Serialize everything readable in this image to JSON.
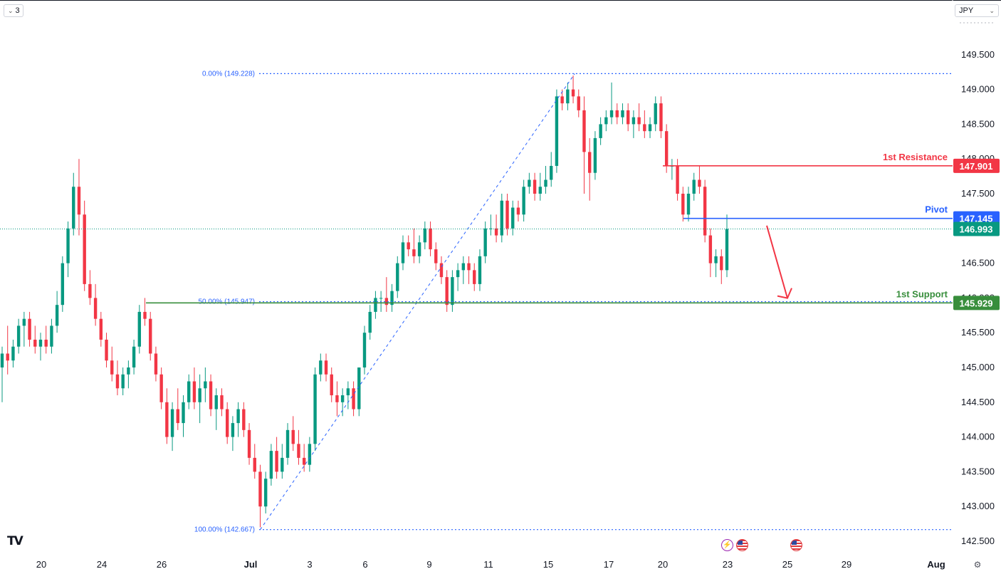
{
  "toolbar": {
    "interval_label": "3",
    "currency_label": "JPY"
  },
  "colors": {
    "up": "#089981",
    "down": "#f23645",
    "fib": "#2962ff",
    "resistance": "#f23645",
    "pivot": "#2962ff",
    "support": "#388e3c",
    "last_price": "#089981",
    "arrow": "#f23645"
  },
  "chart_data": {
    "type": "candlestick",
    "y_axis": {
      "range": [
        142.5,
        149.75
      ],
      "ticks": [
        "149.500",
        "149.000",
        "148.500",
        "148.000",
        "147.500",
        "147.000",
        "146.500",
        "146.000",
        "145.500",
        "145.000",
        "144.500",
        "144.000",
        "143.500",
        "143.000",
        "142.500"
      ],
      "position": "right"
    },
    "x_axis": {
      "tick_labels": [
        "20",
        "24",
        "26",
        "Jul",
        "3",
        "6",
        "9",
        "11",
        "15",
        "17",
        "20",
        "23",
        "25",
        "29",
        "Aug"
      ]
    },
    "candles": [
      [
        145.0,
        145.3,
        144.5,
        145.2
      ],
      [
        145.2,
        145.6,
        144.9,
        145.1
      ],
      [
        145.1,
        145.4,
        145.0,
        145.3
      ],
      [
        145.3,
        145.7,
        145.2,
        145.6
      ],
      [
        145.6,
        145.8,
        145.3,
        145.7
      ],
      [
        145.7,
        145.8,
        145.3,
        145.4
      ],
      [
        145.4,
        145.6,
        145.2,
        145.3
      ],
      [
        145.3,
        145.5,
        145.1,
        145.4
      ],
      [
        145.4,
        145.6,
        145.2,
        145.3
      ],
      [
        145.3,
        145.7,
        145.2,
        145.6
      ],
      [
        145.6,
        146.1,
        145.5,
        145.9
      ],
      [
        145.9,
        146.6,
        145.8,
        146.5
      ],
      [
        146.5,
        147.1,
        146.3,
        147.0
      ],
      [
        147.0,
        147.8,
        146.9,
        147.6
      ],
      [
        147.6,
        148.0,
        146.9,
        147.2
      ],
      [
        147.2,
        147.4,
        146.1,
        146.2
      ],
      [
        146.2,
        146.4,
        145.9,
        146.0
      ],
      [
        146.0,
        146.2,
        145.6,
        145.7
      ],
      [
        145.7,
        145.8,
        145.3,
        145.4
      ],
      [
        145.4,
        145.5,
        145.0,
        145.1
      ],
      [
        145.1,
        145.3,
        144.8,
        144.9
      ],
      [
        144.9,
        145.1,
        144.6,
        144.7
      ],
      [
        144.7,
        145.0,
        144.6,
        144.9
      ],
      [
        144.9,
        145.1,
        144.7,
        145.0
      ],
      [
        145.0,
        145.4,
        144.9,
        145.3
      ],
      [
        145.3,
        145.9,
        145.2,
        145.8
      ],
      [
        145.8,
        146.0,
        145.6,
        145.7
      ],
      [
        145.7,
        145.8,
        145.1,
        145.2
      ],
      [
        145.2,
        145.3,
        144.8,
        144.9
      ],
      [
        144.9,
        145.0,
        144.4,
        144.5
      ],
      [
        144.5,
        144.7,
        143.9,
        144.0
      ],
      [
        144.0,
        144.5,
        143.8,
        144.4
      ],
      [
        144.4,
        144.7,
        144.1,
        144.2
      ],
      [
        144.2,
        144.6,
        144.0,
        144.5
      ],
      [
        144.5,
        144.9,
        144.4,
        144.8
      ],
      [
        144.8,
        145.0,
        144.4,
        144.5
      ],
      [
        144.5,
        144.9,
        144.2,
        144.7
      ],
      [
        144.7,
        145.0,
        144.5,
        144.8
      ],
      [
        144.8,
        144.9,
        144.3,
        144.4
      ],
      [
        144.4,
        144.7,
        144.1,
        144.6
      ],
      [
        144.6,
        144.7,
        144.3,
        144.4
      ],
      [
        144.4,
        144.5,
        143.9,
        144.0
      ],
      [
        144.0,
        144.3,
        143.8,
        144.2
      ],
      [
        144.2,
        144.5,
        144.0,
        144.4
      ],
      [
        144.4,
        144.5,
        144.0,
        144.1
      ],
      [
        144.1,
        144.2,
        143.6,
        143.7
      ],
      [
        143.7,
        143.9,
        143.4,
        143.5
      ],
      [
        143.5,
        143.6,
        142.7,
        143.0
      ],
      [
        143.0,
        143.5,
        142.9,
        143.4
      ],
      [
        143.4,
        143.9,
        143.3,
        143.8
      ],
      [
        143.8,
        144.0,
        143.4,
        143.5
      ],
      [
        143.5,
        143.9,
        143.4,
        143.7
      ],
      [
        143.7,
        144.2,
        143.6,
        144.1
      ],
      [
        144.1,
        144.3,
        143.8,
        143.9
      ],
      [
        143.9,
        144.1,
        143.6,
        143.7
      ],
      [
        143.7,
        143.9,
        143.5,
        143.6
      ],
      [
        143.6,
        144.0,
        143.5,
        143.9
      ],
      [
        143.9,
        145.0,
        143.8,
        144.9
      ],
      [
        144.9,
        145.2,
        144.8,
        145.1
      ],
      [
        145.1,
        145.2,
        144.8,
        144.9
      ],
      [
        144.9,
        145.0,
        144.5,
        144.6
      ],
      [
        144.6,
        144.8,
        144.3,
        144.5
      ],
      [
        144.5,
        144.7,
        144.3,
        144.6
      ],
      [
        144.6,
        144.8,
        144.4,
        144.7
      ],
      [
        144.7,
        144.8,
        144.3,
        144.4
      ],
      [
        144.4,
        145.0,
        144.3,
        145.0
      ],
      [
        145.0,
        145.6,
        144.9,
        145.5
      ],
      [
        145.5,
        145.9,
        145.4,
        145.8
      ],
      [
        145.8,
        146.1,
        145.7,
        146.0
      ],
      [
        146.0,
        146.1,
        145.8,
        146.0
      ],
      [
        146.0,
        146.3,
        145.8,
        145.9
      ],
      [
        145.9,
        146.2,
        145.8,
        146.1
      ],
      [
        146.1,
        146.6,
        146.0,
        146.5
      ],
      [
        146.5,
        146.9,
        146.4,
        146.8
      ],
      [
        146.8,
        146.9,
        146.6,
        146.7
      ],
      [
        146.7,
        147.0,
        146.5,
        146.6
      ],
      [
        146.6,
        146.9,
        146.5,
        146.8
      ],
      [
        146.8,
        147.1,
        146.7,
        147.0
      ],
      [
        147.0,
        147.1,
        146.6,
        146.7
      ],
      [
        146.7,
        146.8,
        146.4,
        146.5
      ],
      [
        146.5,
        146.6,
        146.2,
        146.3
      ],
      [
        146.3,
        146.4,
        145.8,
        145.9
      ],
      [
        145.9,
        146.4,
        145.8,
        146.3
      ],
      [
        146.3,
        146.5,
        146.1,
        146.4
      ],
      [
        146.4,
        146.6,
        146.2,
        146.5
      ],
      [
        146.5,
        146.6,
        146.2,
        146.4
      ],
      [
        146.4,
        146.5,
        146.1,
        146.2
      ],
      [
        146.2,
        146.7,
        146.1,
        146.6
      ],
      [
        146.6,
        147.1,
        146.5,
        147.0
      ],
      [
        147.0,
        147.2,
        146.9,
        147.0
      ],
      [
        147.0,
        147.2,
        146.8,
        146.9
      ],
      [
        146.9,
        147.5,
        146.8,
        147.4
      ],
      [
        147.4,
        147.5,
        146.9,
        147.0
      ],
      [
        147.0,
        147.4,
        146.9,
        147.3
      ],
      [
        147.3,
        147.4,
        147.1,
        147.2
      ],
      [
        147.2,
        147.7,
        147.1,
        147.6
      ],
      [
        147.6,
        147.8,
        147.5,
        147.7
      ],
      [
        147.7,
        147.8,
        147.4,
        147.5
      ],
      [
        147.5,
        147.8,
        147.4,
        147.6
      ],
      [
        147.6,
        147.9,
        147.5,
        147.7
      ],
      [
        147.7,
        148.1,
        147.6,
        147.9
      ],
      [
        147.9,
        149.0,
        147.8,
        148.9
      ],
      [
        148.9,
        149.0,
        148.7,
        148.8
      ],
      [
        148.8,
        149.1,
        148.7,
        149.0
      ],
      [
        149.0,
        149.2,
        148.8,
        148.9
      ],
      [
        148.9,
        149.0,
        148.6,
        148.7
      ],
      [
        148.7,
        148.9,
        147.5,
        148.1
      ],
      [
        148.1,
        148.3,
        147.4,
        147.8
      ],
      [
        147.8,
        148.4,
        147.7,
        148.3
      ],
      [
        148.3,
        148.6,
        148.2,
        148.5
      ],
      [
        148.5,
        148.7,
        148.4,
        148.6
      ],
      [
        148.6,
        149.1,
        148.5,
        148.7
      ],
      [
        148.7,
        148.8,
        148.5,
        148.6
      ],
      [
        148.6,
        148.8,
        148.5,
        148.7
      ],
      [
        148.7,
        148.8,
        148.4,
        148.5
      ],
      [
        148.5,
        148.7,
        148.3,
        148.6
      ],
      [
        148.6,
        148.8,
        148.4,
        148.5
      ],
      [
        148.5,
        148.7,
        148.3,
        148.4
      ],
      [
        148.4,
        148.6,
        148.3,
        148.5
      ],
      [
        148.5,
        148.9,
        148.4,
        148.8
      ],
      [
        148.8,
        148.9,
        148.3,
        148.4
      ],
      [
        148.4,
        148.5,
        147.8,
        147.9
      ],
      [
        147.9,
        148.0,
        147.7,
        147.9
      ],
      [
        147.9,
        148.0,
        147.4,
        147.5
      ],
      [
        147.5,
        147.6,
        147.1,
        147.2
      ],
      [
        147.2,
        147.6,
        147.1,
        147.5
      ],
      [
        147.5,
        147.8,
        147.4,
        147.7
      ],
      [
        147.7,
        147.9,
        147.5,
        147.6
      ],
      [
        147.6,
        147.7,
        146.8,
        146.9
      ],
      [
        146.9,
        147.0,
        146.3,
        146.5
      ],
      [
        146.5,
        146.7,
        146.3,
        146.6
      ],
      [
        146.6,
        146.7,
        146.2,
        146.4
      ],
      [
        146.4,
        147.2,
        146.3,
        146.993
      ]
    ],
    "fibonacci": [
      {
        "label": "0.00% (149.228)",
        "value": 149.228
      },
      {
        "label": "50.00% (145.947)",
        "value": 145.947
      },
      {
        "label": "100.00% (142.667)",
        "value": 142.667
      }
    ],
    "levels": [
      {
        "label": "1st Resistance",
        "value": 147.901,
        "price_tag": "147.901"
      },
      {
        "label": "Pivot",
        "value": 147.145,
        "price_tag": "147.145"
      },
      {
        "label": "1st Support",
        "value": 145.929,
        "price_tag": "145.929"
      }
    ],
    "last_price": {
      "value": 146.993,
      "price_tag": "146.993"
    },
    "projection": {
      "direction": "down",
      "from": 147.0,
      "to": 146.1
    },
    "grid": false
  }
}
